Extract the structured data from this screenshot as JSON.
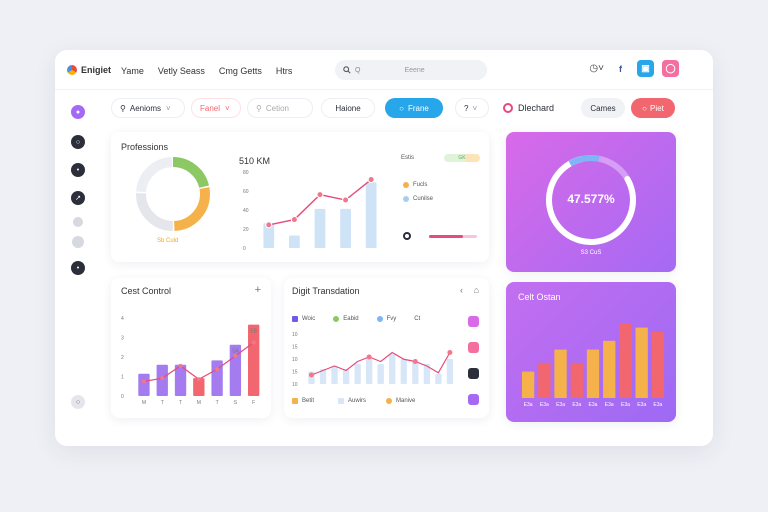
{
  "nav": {
    "logo_text": "Enigiet",
    "links": [
      "Yame",
      "Vetly Seass",
      "Cmg Getts",
      "Htrs"
    ],
    "search_text": "Q",
    "search_placeholder": "Eeene",
    "icons": [
      "clock-icon",
      "facebook-icon",
      "app-icon",
      "instagram-icon"
    ]
  },
  "toolbar": {
    "filter1": "Aenioms",
    "filter2": "Fanel",
    "search_placeholder": "Cetion",
    "btn_neutral": "Haione",
    "btn_primary": "Frane",
    "btn_help": "?",
    "dashboard_label": "Dlechard",
    "btn_outline": "Cames",
    "btn_red": "Piet"
  },
  "sidebar": {
    "items": [
      "dashboard-icon",
      "chat-icon",
      "location-icon",
      "compass-icon",
      "dot-icon",
      "settings-icon",
      "pin-icon",
      "help-icon"
    ]
  },
  "colors": {
    "primary": "#27a6ea",
    "red": "#f2676f",
    "purple": "#a56af4",
    "orange": "#f5b14a",
    "green": "#8cc863",
    "blue": "#4a90e2",
    "pink": "#e64b7b"
  },
  "card_professions": {
    "title": "Professions",
    "donut_label": "Sb Culd",
    "metric": "510 KM",
    "legend_title": "Estis",
    "legend_badge": "GK",
    "legend_items": [
      "Fucls",
      "Cunilse"
    ]
  },
  "card_progress": {
    "value": "47.577%",
    "label": "S3 CuS"
  },
  "card_cost": {
    "title": "Cest Control",
    "add": "+"
  },
  "card_trans": {
    "title": "Digit Transdation",
    "legend_top": [
      "Woic",
      "Eabid",
      "Fvy",
      "Ct"
    ],
    "legend_bottom": [
      "Betit",
      "Auwirs",
      "Manive"
    ]
  },
  "card_cost2": {
    "title": "Celt Ostan"
  },
  "chart_data": [
    {
      "type": "pie",
      "values": [
        22,
        28,
        26,
        24
      ],
      "colors": [
        "#8cc863",
        "#f5b14a",
        "#e4e6ec",
        "#eceef3"
      ]
    },
    {
      "type": "bar",
      "categories": [
        "",
        "",
        "",
        "",
        ""
      ],
      "series": [
        {
          "values": [
            28,
            14,
            44,
            44,
            74
          ]
        },
        {
          "values": [
            26,
            32,
            60,
            54,
            77
          ]
        }
      ],
      "ylabels": [
        "0",
        "20",
        "40",
        "60",
        "80"
      ],
      "ylim": [
        0,
        90
      ]
    },
    {
      "type": "bar",
      "categories": [
        "M",
        "T",
        "T",
        "M",
        "T",
        "S",
        "F"
      ],
      "values": [
        2,
        2.8,
        2.8,
        1.6,
        3.2,
        4.6,
        6.4
      ],
      "bar_labels": [
        "",
        "",
        "",
        "",
        "",
        "SA",
        "EB"
      ],
      "line": [
        1.3,
        1.6,
        2.7,
        1.5,
        2.4,
        3.6,
        4.8
      ],
      "ylabels": [
        "0",
        "1",
        "2",
        "3",
        "4"
      ],
      "ylim": [
        0,
        7
      ]
    },
    {
      "type": "bar",
      "categories": [
        "1",
        "2",
        "3",
        "4",
        "5",
        "6",
        "7",
        "8",
        "9",
        "10",
        "11",
        "12",
        "13"
      ],
      "values": [
        5,
        6,
        7,
        6,
        8,
        10,
        8,
        12,
        10,
        9,
        8,
        4,
        10
      ],
      "line": [
        4,
        6,
        8,
        6,
        10,
        12,
        10,
        14,
        11,
        10,
        8,
        5,
        14
      ],
      "ylabels": [
        "10",
        "15",
        "10",
        "15",
        "10"
      ],
      "ylim": [
        0,
        20
      ]
    },
    {
      "type": "bar",
      "categories": [
        "E3a",
        "E3a",
        "E3a",
        "E3a",
        "E3a",
        "E3a",
        "E3a",
        "E3a",
        "E3a"
      ],
      "values": [
        6,
        8,
        11,
        8,
        11,
        13,
        17,
        16,
        15
      ],
      "colors": [
        "#f5b14a",
        "#f2676f",
        "#f5b14a",
        "#f2676f",
        "#f5b14a",
        "#f5b14a",
        "#f2676f",
        "#f5b14a",
        "#f2676f"
      ],
      "ylim": [
        0,
        20
      ]
    }
  ]
}
